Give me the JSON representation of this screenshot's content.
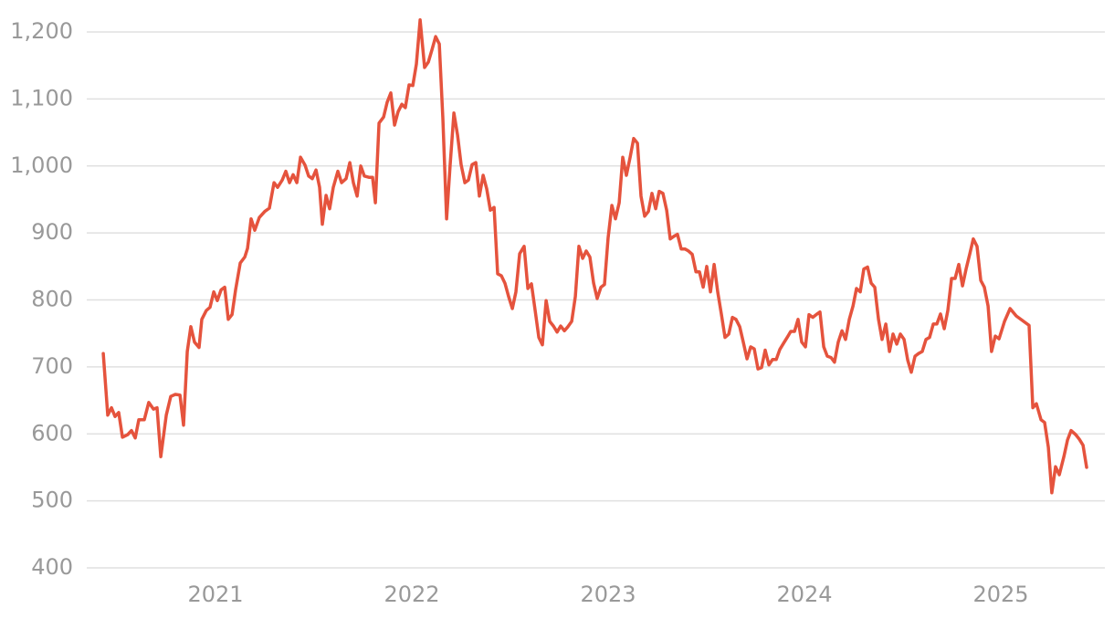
{
  "chart_data": {
    "type": "line",
    "x": [
      2020.428,
      2020.451,
      2020.47,
      2020.488,
      2020.507,
      2020.526,
      2020.553,
      2020.572,
      2020.591,
      2020.609,
      2020.637,
      2020.66,
      2020.684,
      2020.702,
      2020.721,
      2020.749,
      2020.772,
      2020.795,
      2020.819,
      2020.837,
      2020.856,
      2020.874,
      2020.893,
      2020.916,
      2020.93,
      2020.953,
      2020.972,
      2020.991,
      2021.009,
      2021.028,
      2021.047,
      2021.065,
      2021.084,
      2021.102,
      2021.126,
      2021.149,
      2021.163,
      2021.181,
      2021.2,
      2021.223,
      2021.251,
      2021.274,
      2021.298,
      2021.316,
      2021.34,
      2021.358,
      2021.377,
      2021.395,
      2021.414,
      2021.433,
      2021.456,
      2021.474,
      2021.493,
      2021.512,
      2021.53,
      2021.544,
      2021.563,
      2021.581,
      2021.6,
      2021.623,
      2021.642,
      2021.665,
      2021.684,
      2021.702,
      2021.721,
      2021.74,
      2021.758,
      2021.781,
      2021.8,
      2021.814,
      2021.833,
      2021.856,
      2021.874,
      2021.893,
      2021.912,
      2021.93,
      2021.949,
      2021.967,
      2021.986,
      2022.005,
      2022.023,
      2022.042,
      2022.065,
      2022.084,
      2022.102,
      2022.121,
      2022.14,
      2022.158,
      2022.177,
      2022.195,
      2022.214,
      2022.233,
      2022.251,
      2022.27,
      2022.288,
      2022.307,
      2022.326,
      2022.344,
      2022.363,
      2022.381,
      2022.4,
      2022.419,
      2022.437,
      2022.456,
      2022.474,
      2022.493,
      2022.512,
      2022.53,
      2022.549,
      2022.572,
      2022.591,
      2022.609,
      2022.628,
      2022.647,
      2022.665,
      2022.684,
      2022.702,
      2022.721,
      2022.74,
      2022.758,
      2022.777,
      2022.795,
      2022.814,
      2022.833,
      2022.851,
      2022.87,
      2022.888,
      2022.907,
      2022.926,
      2022.944,
      2022.963,
      2022.981,
      2023.0,
      2023.019,
      2023.037,
      2023.056,
      2023.074,
      2023.093,
      2023.112,
      2023.13,
      2023.149,
      2023.167,
      2023.186,
      2023.205,
      2023.223,
      2023.242,
      2023.26,
      2023.279,
      2023.298,
      2023.316,
      2023.335,
      2023.353,
      2023.372,
      2023.391,
      2023.409,
      2023.428,
      2023.447,
      2023.465,
      2023.484,
      2023.502,
      2023.521,
      2023.54,
      2023.558,
      2023.577,
      2023.595,
      2023.614,
      2023.633,
      2023.651,
      2023.67,
      2023.688,
      2023.707,
      2023.726,
      2023.744,
      2023.763,
      2023.781,
      2023.8,
      2023.819,
      2023.837,
      2023.856,
      2023.874,
      2023.893,
      2023.912,
      2023.93,
      2023.949,
      2023.967,
      2023.986,
      2024.005,
      2024.023,
      2024.042,
      2024.06,
      2024.079,
      2024.098,
      2024.116,
      2024.135,
      2024.153,
      2024.172,
      2024.191,
      2024.209,
      2024.228,
      2024.247,
      2024.265,
      2024.284,
      2024.302,
      2024.321,
      2024.34,
      2024.358,
      2024.377,
      2024.395,
      2024.414,
      2024.433,
      2024.451,
      2024.47,
      2024.488,
      2024.507,
      2024.526,
      2024.544,
      2024.563,
      2024.581,
      2024.6,
      2024.619,
      2024.637,
      2024.656,
      2024.674,
      2024.693,
      2024.712,
      2024.73,
      2024.749,
      2024.767,
      2024.786,
      2024.805,
      2024.823,
      2024.842,
      2024.86,
      2024.879,
      2024.898,
      2024.916,
      2024.935,
      2024.953,
      2024.972,
      2024.991,
      2025.019,
      2025.047,
      2025.079,
      2025.144,
      2025.163,
      2025.181,
      2025.205,
      2025.223,
      2025.242,
      2025.26,
      2025.279,
      2025.298,
      2025.321,
      2025.34,
      2025.358,
      2025.381,
      2025.4,
      2025.419,
      2025.437
    ],
    "series": [
      {
        "color": "#e5533d",
        "values": [
          720,
          628,
          639,
          626,
          632,
          595,
          599,
          605,
          594,
          621,
          621,
          647,
          637,
          639,
          566,
          628,
          656,
          659,
          658,
          613,
          723,
          760,
          737,
          729,
          771,
          784,
          789,
          812,
          799,
          815,
          819,
          771,
          778,
          815,
          855,
          864,
          877,
          921,
          904,
          923,
          932,
          937,
          975,
          968,
          979,
          992,
          975,
          987,
          975,
          1013,
          1001,
          985,
          981,
          994,
          968,
          913,
          956,
          936,
          968,
          992,
          975,
          981,
          1005,
          975,
          955,
          1000,
          985,
          983,
          983,
          945,
          1064,
          1073,
          1095,
          1109,
          1061,
          1081,
          1092,
          1087,
          1121,
          1120,
          1152,
          1218,
          1147,
          1155,
          1173,
          1193,
          1182,
          1071,
          921,
          1002,
          1079,
          1046,
          1002,
          975,
          979,
          1002,
          1005,
          955,
          986,
          966,
          934,
          938,
          839,
          836,
          825,
          805,
          787,
          812,
          869,
          880,
          817,
          824,
          784,
          744,
          733,
          799,
          768,
          761,
          752,
          761,
          754,
          760,
          768,
          805,
          880,
          862,
          873,
          864,
          825,
          802,
          819,
          823,
          893,
          941,
          921,
          945,
          1013,
          986,
          1013,
          1041,
          1034,
          955,
          925,
          932,
          959,
          936,
          962,
          959,
          934,
          891,
          895,
          898,
          876,
          876,
          873,
          868,
          842,
          842,
          819,
          850,
          812,
          853,
          812,
          778,
          744,
          749,
          774,
          771,
          760,
          737,
          712,
          730,
          727,
          697,
          699,
          725,
          703,
          711,
          711,
          726,
          735,
          744,
          753,
          753,
          771,
          737,
          730,
          778,
          774,
          778,
          782,
          730,
          716,
          714,
          707,
          737,
          754,
          741,
          771,
          791,
          817,
          812,
          846,
          849,
          825,
          819,
          771,
          741,
          764,
          723,
          749,
          734,
          749,
          741,
          710,
          692,
          716,
          720,
          723,
          741,
          744,
          764,
          764,
          779,
          757,
          784,
          832,
          832,
          853,
          821,
          846,
          869,
          891,
          880,
          829,
          819,
          791,
          723,
          746,
          742,
          768,
          787,
          776,
          762,
          639,
          645,
          621,
          617,
          580,
          512,
          551,
          539,
          566,
          591,
          605,
          599,
          592,
          583,
          550
        ]
      }
    ],
    "xlim": [
      2020.344,
      2025.53
    ],
    "xticks": [
      2021,
      2022,
      2023,
      2024,
      2025
    ],
    "ylim": [
      400,
      1200
    ],
    "yticks": [
      400,
      500,
      600,
      700,
      800,
      900,
      {
        "value": 1000,
        "label": "1,000"
      },
      {
        "value": 1100,
        "label": "1,100"
      },
      {
        "value": 1200,
        "label": "1,200"
      }
    ],
    "grid": true
  }
}
